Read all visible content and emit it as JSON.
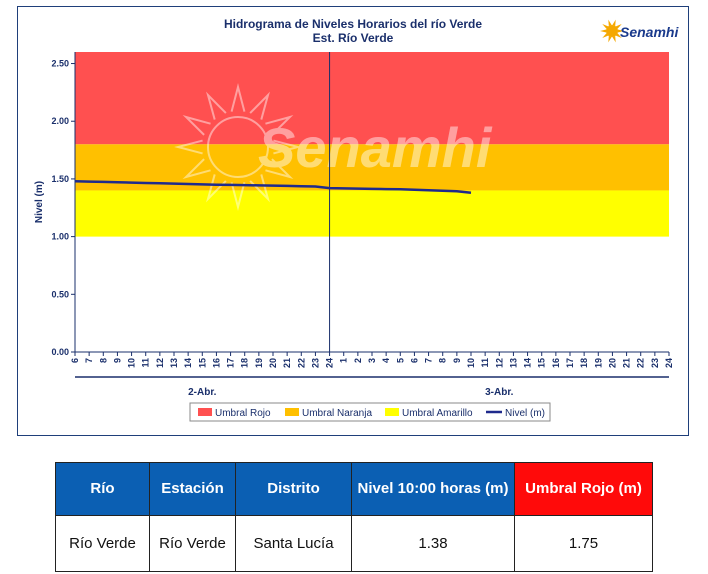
{
  "chart_data": {
    "type": "line",
    "title": "Hidrograma de Niveles Horarios del río Verde",
    "subtitle": "Est. Río Verde",
    "logo_text": "Senamhi",
    "watermark_text": "Senamhi",
    "ylabel": "Nivel (m)",
    "xlabel": "",
    "ylim": [
      0,
      2.6
    ],
    "yticks": [
      "0.00",
      "0.50",
      "1.00",
      "1.50",
      "2.00",
      "2.50"
    ],
    "x_hour_labels": [
      "6",
      "7",
      "8",
      "9",
      "10",
      "11",
      "12",
      "13",
      "14",
      "15",
      "16",
      "17",
      "18",
      "19",
      "20",
      "21",
      "22",
      "23",
      "24",
      "1",
      "2",
      "3",
      "4",
      "5",
      "6",
      "7",
      "8",
      "9",
      "10",
      "11",
      "12",
      "13",
      "14",
      "15",
      "16",
      "17",
      "18",
      "19",
      "20",
      "21",
      "22",
      "23",
      "24"
    ],
    "day_labels": [
      "2-Abr.",
      "3-Abr."
    ],
    "threshold_bands": [
      {
        "name": "Umbral Rojo",
        "from": 1.8,
        "to": 2.6,
        "color": "#ff5050"
      },
      {
        "name": "Umbral Naranja",
        "from": 1.4,
        "to": 1.8,
        "color": "#ffc000"
      },
      {
        "name": "Umbral Amarillo",
        "from": 1.0,
        "to": 1.4,
        "color": "#ffff00"
      }
    ],
    "series": [
      {
        "name": "Nivel (m)",
        "color": "#1f2a8c",
        "values": [
          1.48,
          1.477,
          1.474,
          1.471,
          1.468,
          1.465,
          1.462,
          1.459,
          1.456,
          1.453,
          1.45,
          1.448,
          1.446,
          1.444,
          1.442,
          1.44,
          1.437,
          1.434,
          1.42,
          1.418,
          1.416,
          1.414,
          1.412,
          1.41,
          1.406,
          1.402,
          1.398,
          1.393,
          1.38
        ]
      }
    ],
    "legend": [
      "Umbral Rojo",
      "Umbral Naranja",
      "Umbral Amarillo",
      "Nivel (m)"
    ],
    "legend_position": "bottom",
    "grid": false,
    "day_separator_after_label_index": 18
  },
  "table": {
    "headers": [
      "Río",
      "Estación",
      "Distrito",
      "Nivel 10:00 horas (m)",
      "Umbral Rojo (m)"
    ],
    "row": [
      "Río Verde",
      "Río Verde",
      "Santa Lucía",
      "1.38",
      "1.75"
    ]
  }
}
